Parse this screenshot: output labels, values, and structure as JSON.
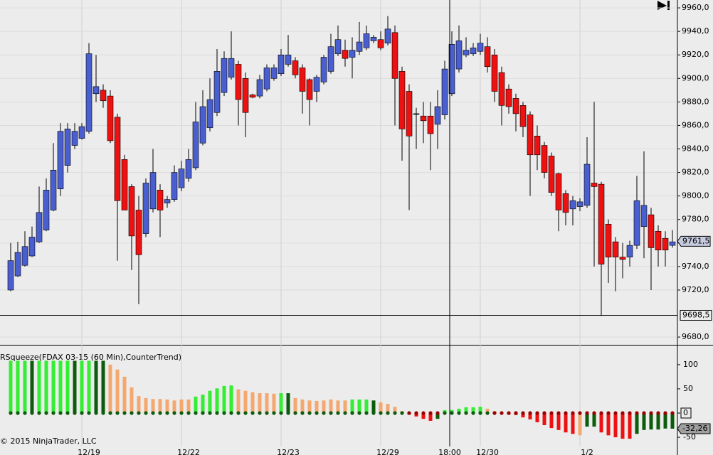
{
  "chart_data": {
    "type": "candlestick",
    "ylim": [
      9673.4,
      9966.7
    ],
    "yticks": [
      {
        "value": 9960,
        "label": "9960,0"
      },
      {
        "value": 9940,
        "label": "9940,0"
      },
      {
        "value": 9920,
        "label": "9920,0"
      },
      {
        "value": 9900,
        "label": "9900,0"
      },
      {
        "value": 9880,
        "label": "9880,0"
      },
      {
        "value": 9860,
        "label": "9860,0"
      },
      {
        "value": 9840,
        "label": "9840,0"
      },
      {
        "value": 9820,
        "label": "9820,0"
      },
      {
        "value": 9800,
        "label": "9800,0"
      },
      {
        "value": 9780,
        "label": "9780,0"
      },
      {
        "value": 9760,
        "label": "9760,0"
      },
      {
        "value": 9740,
        "label": "9740,0"
      },
      {
        "value": 9720,
        "label": "9720,0"
      },
      {
        "value": 9680,
        "label": "9680,0"
      }
    ],
    "xticks": [
      {
        "value": 10,
        "label": "12/19"
      },
      {
        "value": 24,
        "label": "12/22"
      },
      {
        "value": 38,
        "label": "12/23"
      },
      {
        "value": 52,
        "label": "12/29"
      },
      {
        "value": 66,
        "label": "12/30"
      },
      {
        "value": 80,
        "label": "1/2"
      }
    ],
    "up_color": "#4a5fcf",
    "down_color": "#ee1111",
    "open": [
      9720,
      9732,
      9741,
      9749,
      9761,
      9771,
      9788,
      9806,
      9826,
      9843,
      9849,
      9855,
      9887,
      9890,
      9885,
      9867,
      9831,
      9808,
      9788,
      9768,
      9789,
      9805,
      9794,
      9797,
      9807,
      9815,
      9824,
      9845,
      9858,
      9871,
      9888,
      9901,
      9912,
      9900,
      9886,
      9885,
      9891,
      9900,
      9904,
      9912,
      9915,
      9909,
      9899,
      9889,
      9897,
      9906,
      9921,
      9924,
      9918,
      9923,
      9926,
      9932,
      9933,
      9930,
      9939,
      9906,
      9889,
      9870,
      9868,
      9868,
      9861,
      9869,
      9887,
      9908,
      9920,
      9921,
      9923,
      9927,
      9920,
      9905,
      9891,
      9883,
      9877,
      9869,
      9851,
      9843,
      9834,
      9819,
      9802,
      9789,
      9791,
      9792,
      9811,
      9810,
      9776,
      9761,
      9748,
      9748,
      9758,
      9774,
      9784,
      9770,
      9764,
      9758
    ],
    "high": [
      9760,
      9761,
      9770,
      9774,
      9808,
      9815,
      9845,
      9862,
      9862,
      9862,
      9862,
      9930,
      9920,
      9895,
      9890,
      9870,
      9835,
      9810,
      9800,
      9815,
      9840,
      9810,
      9800,
      9826,
      9830,
      9840,
      9880,
      9890,
      9900,
      9925,
      9923,
      9940,
      9915,
      9905,
      9887,
      9903,
      9912,
      9912,
      9925,
      9937,
      9918,
      9912,
      9900,
      9903,
      9920,
      9938,
      9945,
      9933,
      9935,
      9948,
      9945,
      9937,
      9940,
      9953,
      9945,
      9910,
      9895,
      9875,
      9880,
      9880,
      9890,
      9915,
      9940,
      9945,
      9935,
      9930,
      9938,
      9935,
      9925,
      9910,
      9895,
      9887,
      9880,
      9872,
      9860,
      9846,
      9837,
      9820,
      9805,
      9800,
      9798,
      9850,
      9880,
      9812,
      9780,
      9765,
      9760,
      9762,
      9817,
      9838,
      9790,
      9775,
      9770,
      9771
    ],
    "low": [
      9719,
      9731,
      9740,
      9748,
      9760,
      9770,
      9787,
      9800,
      9820,
      9840,
      9848,
      9853,
      9880,
      9875,
      9845,
      9745,
      9788,
      9737,
      9708,
      9765,
      9786,
      9765,
      9790,
      9795,
      9804,
      9812,
      9822,
      9843,
      9855,
      9868,
      9885,
      9899,
      9860,
      9850,
      9883,
      9883,
      9889,
      9898,
      9902,
      9910,
      9900,
      9870,
      9860,
      9880,
      9895,
      9904,
      9919,
      9910,
      9900,
      9920,
      9924,
      9930,
      9924,
      9928,
      9860,
      9830,
      9788,
      9840,
      9845,
      9822,
      9840,
      9865,
      9885,
      9905,
      9918,
      9919,
      9920,
      9905,
      9880,
      9860,
      9870,
      9855,
      9850,
      9800,
      9822,
      9815,
      9800,
      9770,
      9775,
      9775,
      9787,
      9790,
      9740,
      9698,
      9726,
      9719,
      9730,
      9740,
      9755,
      9747,
      9720,
      9740,
      9740,
      9756
    ],
    "close": [
      9745,
      9752,
      9757,
      9765,
      9786,
      9805,
      9822,
      9855,
      9857,
      9855,
      9859,
      9921,
      9893,
      9881,
      9847,
      9796,
      9788,
      9766,
      9750,
      9811,
      9820,
      9788,
      9797,
      9820,
      9823,
      9831,
      9863,
      9876,
      9882,
      9906,
      9917,
      9917,
      9882,
      9871,
      9884,
      9899,
      9909,
      9909,
      9920,
      9920,
      9903,
      9889,
      9882,
      9901,
      9918,
      9927,
      9933,
      9917,
      9924,
      9931,
      9938,
      9935,
      9926,
      9942,
      9900,
      9857,
      9851,
      9870,
      9864,
      9853,
      9876,
      9908,
      9929,
      9932,
      9924,
      9926,
      9930,
      9910,
      9889,
      9877,
      9876,
      9870,
      9859,
      9835,
      9835,
      9820,
      9803,
      9788,
      9786,
      9796,
      9795,
      9827,
      9808,
      9742,
      9748,
      9748,
      9746,
      9758,
      9796,
      9792,
      9756,
      9754,
      9754,
      9761
    ],
    "last_price": {
      "value": 9761.5,
      "label": "9761,5"
    },
    "crosshair": {
      "x": {
        "value": 61.7,
        "label": "18:00"
      },
      "y": {
        "value": 9698.5,
        "label": "9698,5"
      }
    },
    "indicator": {
      "type": "histogram",
      "title": "RSqueeze(FDAX 03-15 (60 Min),CounterTrend)",
      "ylim": [
        -69,
        138
      ],
      "yticks": [
        100,
        50,
        0,
        -50
      ],
      "values": [
        108,
        108,
        108,
        108,
        108,
        108,
        108,
        108,
        108,
        108,
        108,
        108,
        108,
        108,
        100,
        90,
        75,
        53,
        35,
        31,
        29,
        29,
        28,
        26,
        28,
        28,
        34,
        38,
        46,
        51,
        56,
        57,
        49,
        46,
        43,
        41,
        41,
        40,
        41,
        41,
        31,
        28,
        26,
        25,
        26,
        28,
        26,
        26,
        28,
        28,
        28,
        26,
        22,
        19,
        13,
        4,
        -3,
        -7,
        -12,
        -16,
        -12,
        6,
        6,
        9,
        12,
        12,
        13,
        9,
        4,
        -1,
        -3,
        -4,
        -9,
        -13,
        -19,
        -25,
        -31,
        -35,
        -40,
        -43,
        -46,
        -28,
        -28,
        -40,
        -46,
        -50,
        -53,
        -53,
        -43,
        -35,
        -34,
        -34,
        -32,
        -32.26
      ],
      "colors": [
        "#33ee33",
        "#33ee33",
        "#33ee33",
        "#0d5c0d",
        "#33ee33",
        "#33ee33",
        "#33ee33",
        "#33ee33",
        "#33ee33",
        "#0d5c0d",
        "#33ee33",
        "#33ee33",
        "#0d5c0d",
        "#0d5c0d",
        "#f4a870",
        "#f4a870",
        "#f4a870",
        "#f4a870",
        "#f4a870",
        "#f4a870",
        "#f4a870",
        "#f4a870",
        "#f4a870",
        "#f4a870",
        "#f4a870",
        "#f4a870",
        "#33ee33",
        "#33ee33",
        "#33ee33",
        "#33ee33",
        "#33ee33",
        "#33ee33",
        "#f4a870",
        "#f4a870",
        "#f4a870",
        "#f4a870",
        "#f4a870",
        "#f4a870",
        "#33ee33",
        "#0d5c0d",
        "#f4a870",
        "#f4a870",
        "#f4a870",
        "#f4a870",
        "#f4a870",
        "#f4a870",
        "#f4a870",
        "#f4a870",
        "#33ee33",
        "#33ee33",
        "#33ee33",
        "#0d5c0d",
        "#f4a870",
        "#f4a870",
        "#f4a870",
        "#f4a870",
        "#ee1111",
        "#ee1111",
        "#ee1111",
        "#ee1111",
        "#0d5c0d",
        "#33ee33",
        "#33ee33",
        "#33ee33",
        "#33ee33",
        "#33ee33",
        "#33ee33",
        "#f4a870",
        "#f4a870",
        "#ee1111",
        "#ee1111",
        "#ee1111",
        "#ee1111",
        "#ee1111",
        "#ee1111",
        "#ee1111",
        "#ee1111",
        "#ee1111",
        "#ee1111",
        "#ee1111",
        "#f4a870",
        "#0d5c0d",
        "#0d5c0d",
        "#ee1111",
        "#ee1111",
        "#ee1111",
        "#ee1111",
        "#ee1111",
        "#0d5c0d",
        "#0d5c0d",
        "#0d5c0d",
        "#0d5c0d",
        "#0d5c0d",
        "#0d5c0d"
      ],
      "squeeze_dots": [
        {
          "from": 0,
          "to": 55,
          "color": "#0d5c0d"
        },
        {
          "from": 56,
          "to": 60,
          "color": "#990000"
        },
        {
          "from": 61,
          "to": 67,
          "color": "#0d5c0d"
        },
        {
          "from": 68,
          "to": 93,
          "color": "#990000"
        }
      ],
      "current": {
        "value": -32.26,
        "label": "-32,26"
      }
    },
    "copyright": "© 2015 NinjaTrader, LLC"
  }
}
